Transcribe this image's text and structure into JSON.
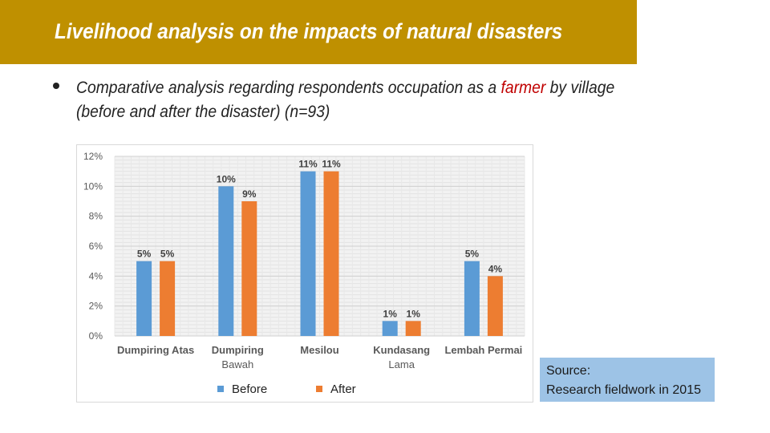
{
  "header": {
    "title": "Livelihood analysis on the impacts of natural disasters"
  },
  "bullet": {
    "text_before": "Comparative analysis regarding respondents occupation as a ",
    "highlight": "farmer",
    "text_after": " by village (before and after the disaster) (n=93)"
  },
  "source": {
    "line1": "Source:",
    "line2": "Research fieldwork in 2015"
  },
  "colors": {
    "title_bar": "#bf9000",
    "before": "#5b9bd5",
    "after": "#ed7d31",
    "highlight": "#c00000",
    "source_box": "#9dc3e6"
  },
  "chart_data": {
    "type": "bar",
    "title": "",
    "xlabel": "",
    "ylabel": "",
    "ylim": [
      0,
      12
    ],
    "yticks": [
      0,
      2,
      4,
      6,
      8,
      10,
      12
    ],
    "ytick_labels": [
      "0%",
      "2%",
      "4%",
      "6%",
      "8%",
      "10%",
      "12%"
    ],
    "categories": [
      [
        "Dumpiring Atas"
      ],
      [
        "Dumpiring",
        "Bawah"
      ],
      [
        "Mesilou"
      ],
      [
        "Kundasang",
        "Lama"
      ],
      [
        "Lembah Permai"
      ]
    ],
    "series": [
      {
        "name": "Before",
        "values": [
          5,
          10,
          11,
          1,
          5
        ],
        "labels": [
          "5%",
          "10%",
          "11%",
          "1%",
          "5%"
        ]
      },
      {
        "name": "After",
        "values": [
          5,
          9,
          11,
          1,
          4
        ],
        "labels": [
          "5%",
          "9%",
          "11%",
          "1%",
          "4%"
        ]
      }
    ],
    "grid": true,
    "legend": "bottom"
  }
}
